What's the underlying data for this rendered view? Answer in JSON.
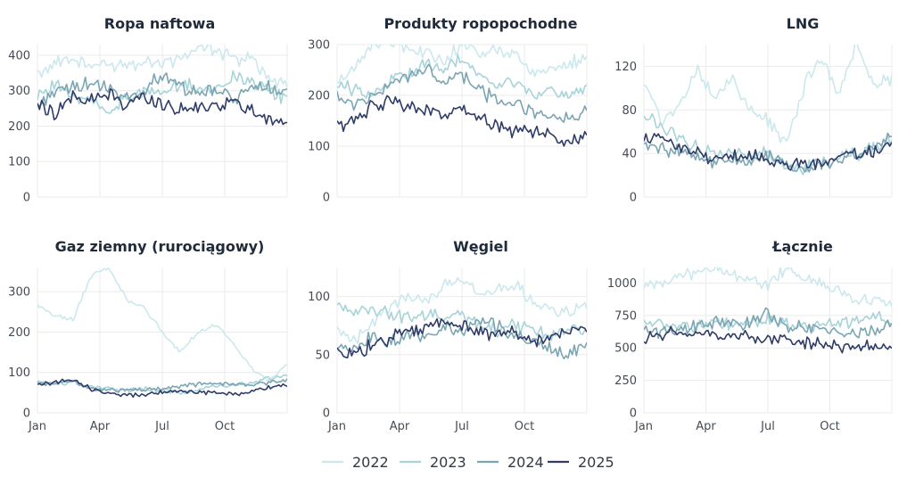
{
  "chart_data": [
    {
      "type": "line",
      "title": "Ropa naftowa",
      "ylim": [
        0,
        430
      ],
      "yticks": [
        0,
        100,
        200,
        300,
        400
      ],
      "xticks": [
        "Jan",
        "Apr",
        "Jul",
        "Oct"
      ],
      "x_tick_labels_shown": false,
      "series": [
        {
          "name": "2022",
          "values": [
            350,
            380,
            390,
            370,
            370,
            375,
            385,
            380,
            390,
            420,
            410,
            390,
            395,
            330,
            320
          ]
        },
        {
          "name": "2023",
          "values": [
            290,
            320,
            280,
            270,
            240,
            280,
            300,
            290,
            320,
            310,
            300,
            340,
            330,
            300,
            270
          ]
        },
        {
          "name": "2024",
          "values": [
            260,
            300,
            310,
            320,
            300,
            280,
            300,
            350,
            310,
            290,
            300,
            280,
            300,
            310,
            300
          ]
        },
        {
          "name": "2025",
          "values": [
            260,
            240,
            280,
            270,
            290,
            260,
            280,
            260,
            250,
            250,
            260,
            270,
            240,
            220,
            210
          ]
        }
      ]
    },
    {
      "type": "line",
      "title": "Produkty ropopochodne",
      "ylim": [
        0,
        300
      ],
      "yticks": [
        0,
        100,
        200,
        300
      ],
      "xticks": [
        "Jan",
        "Apr",
        "Jul",
        "Oct"
      ],
      "x_tick_labels_shown": false,
      "series": [
        {
          "name": "2022",
          "values": [
            220,
            250,
            300,
            310,
            290,
            280,
            270,
            300,
            280,
            290,
            280,
            240,
            250,
            260,
            280
          ]
        },
        {
          "name": "2023",
          "values": [
            220,
            210,
            200,
            230,
            240,
            260,
            250,
            270,
            240,
            220,
            230,
            200,
            210,
            200,
            220
          ]
        },
        {
          "name": "2024",
          "values": [
            200,
            180,
            200,
            220,
            240,
            250,
            230,
            240,
            210,
            190,
            180,
            170,
            160,
            150,
            165
          ]
        },
        {
          "name": "2025",
          "values": [
            140,
            150,
            180,
            190,
            180,
            170,
            160,
            170,
            150,
            140,
            130,
            130,
            120,
            110,
            120
          ]
        }
      ]
    },
    {
      "type": "line",
      "title": "LNG",
      "ylim": [
        0,
        140
      ],
      "yticks": [
        0,
        40,
        80,
        120
      ],
      "xticks": [
        "Jan",
        "Apr",
        "Jul",
        "Oct"
      ],
      "x_tick_labels_shown": false,
      "series": [
        {
          "name": "2022",
          "values": [
            105,
            70,
            80,
            120,
            90,
            110,
            80,
            70,
            50,
            100,
            130,
            90,
            140,
            100,
            110
          ]
        },
        {
          "name": "2023",
          "values": [
            75,
            65,
            55,
            45,
            40,
            42,
            38,
            40,
            30,
            28,
            32,
            35,
            40,
            45,
            55
          ]
        },
        {
          "name": "2024",
          "values": [
            50,
            45,
            42,
            35,
            30,
            35,
            32,
            38,
            28,
            25,
            30,
            35,
            38,
            45,
            60
          ]
        },
        {
          "name": "2025",
          "values": [
            52,
            55,
            45,
            40,
            35,
            38,
            40,
            35,
            30,
            32,
            30,
            38,
            40,
            42,
            48
          ]
        }
      ]
    },
    {
      "type": "line",
      "title": "Gaz ziemny (rurociągowy)",
      "ylim": [
        0,
        360
      ],
      "yticks": [
        0,
        100,
        200,
        300
      ],
      "xticks": [
        "Jan",
        "Apr",
        "Jul",
        "Oct"
      ],
      "x_tick_labels_shown": true,
      "series": [
        {
          "name": "2022",
          "values": [
            265,
            240,
            230,
            340,
            360,
            280,
            260,
            200,
            150,
            200,
            220,
            170,
            110,
            80,
            115
          ]
        },
        {
          "name": "2023",
          "values": [
            80,
            70,
            75,
            65,
            60,
            55,
            60,
            55,
            50,
            60,
            65,
            70,
            75,
            85,
            90
          ]
        },
        {
          "name": "2024",
          "values": [
            75,
            72,
            78,
            60,
            55,
            58,
            55,
            60,
            65,
            70,
            72,
            70,
            68,
            75,
            80
          ]
        },
        {
          "name": "2025",
          "values": [
            72,
            75,
            80,
            60,
            50,
            45,
            45,
            50,
            55,
            52,
            50,
            48,
            50,
            65,
            70
          ]
        }
      ]
    },
    {
      "type": "line",
      "title": "Węgiel",
      "ylim": [
        0,
        125
      ],
      "yticks": [
        0,
        50,
        100
      ],
      "xticks": [
        "Jan",
        "Apr",
        "Jul",
        "Oct"
      ],
      "x_tick_labels_shown": true,
      "series": [
        {
          "name": "2022",
          "values": [
            70,
            60,
            80,
            90,
            100,
            95,
            110,
            115,
            100,
            105,
            110,
            95,
            90,
            85,
            95
          ]
        },
        {
          "name": "2023",
          "values": [
            95,
            85,
            90,
            85,
            80,
            85,
            80,
            85,
            75,
            70,
            75,
            70,
            65,
            75,
            70
          ]
        },
        {
          "name": "2024",
          "values": [
            60,
            55,
            65,
            60,
            70,
            65,
            75,
            70,
            80,
            75,
            65,
            60,
            55,
            50,
            60
          ]
        },
        {
          "name": "2025",
          "values": [
            55,
            50,
            60,
            65,
            70,
            75,
            80,
            75,
            70,
            65,
            70,
            60,
            65,
            70,
            75
          ]
        }
      ]
    },
    {
      "type": "line",
      "title": "Łącznie",
      "ylim": [
        0,
        1120
      ],
      "yticks": [
        0,
        250,
        500,
        750,
        1000
      ],
      "xticks": [
        "Jan",
        "Apr",
        "Jul",
        "Oct"
      ],
      "x_tick_labels_shown": true,
      "series": [
        {
          "name": "2022",
          "values": [
            1000,
            980,
            1050,
            1100,
            1120,
            1060,
            1020,
            1000,
            1100,
            1050,
            980,
            920,
            880,
            840,
            850
          ]
        },
        {
          "name": "2023",
          "values": [
            700,
            680,
            650,
            660,
            700,
            680,
            700,
            720,
            680,
            660,
            680,
            700,
            720,
            740,
            700
          ]
        },
        {
          "name": "2024",
          "values": [
            650,
            620,
            640,
            680,
            700,
            680,
            700,
            780,
            680,
            650,
            640,
            620,
            600,
            640,
            680
          ]
        },
        {
          "name": "2025",
          "values": [
            570,
            610,
            620,
            600,
            590,
            580,
            590,
            570,
            560,
            550,
            540,
            520,
            500,
            510,
            500
          ]
        }
      ]
    }
  ],
  "legend": {
    "position": "bottom",
    "items": [
      {
        "name": "2022",
        "color": "#cce8ed"
      },
      {
        "name": "2023",
        "color": "#a7d3d9"
      },
      {
        "name": "2024",
        "color": "#7ba5b2"
      },
      {
        "name": "2025",
        "color": "#2f3c68"
      }
    ]
  }
}
